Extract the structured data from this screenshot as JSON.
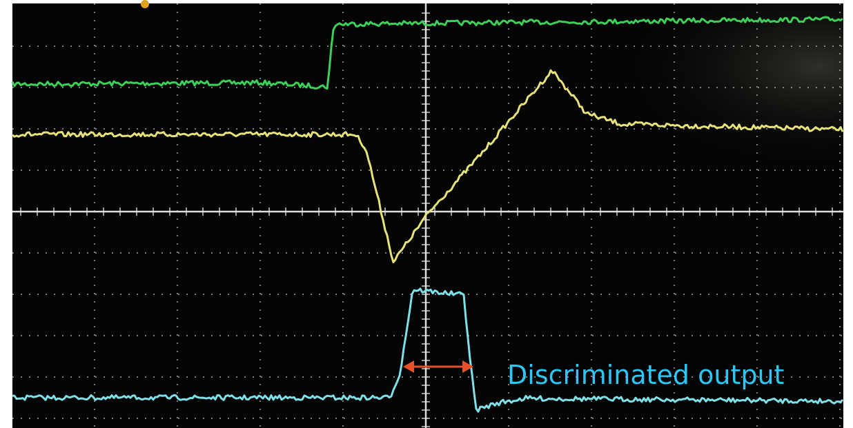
{
  "annotation": "Discriminated output"
}
